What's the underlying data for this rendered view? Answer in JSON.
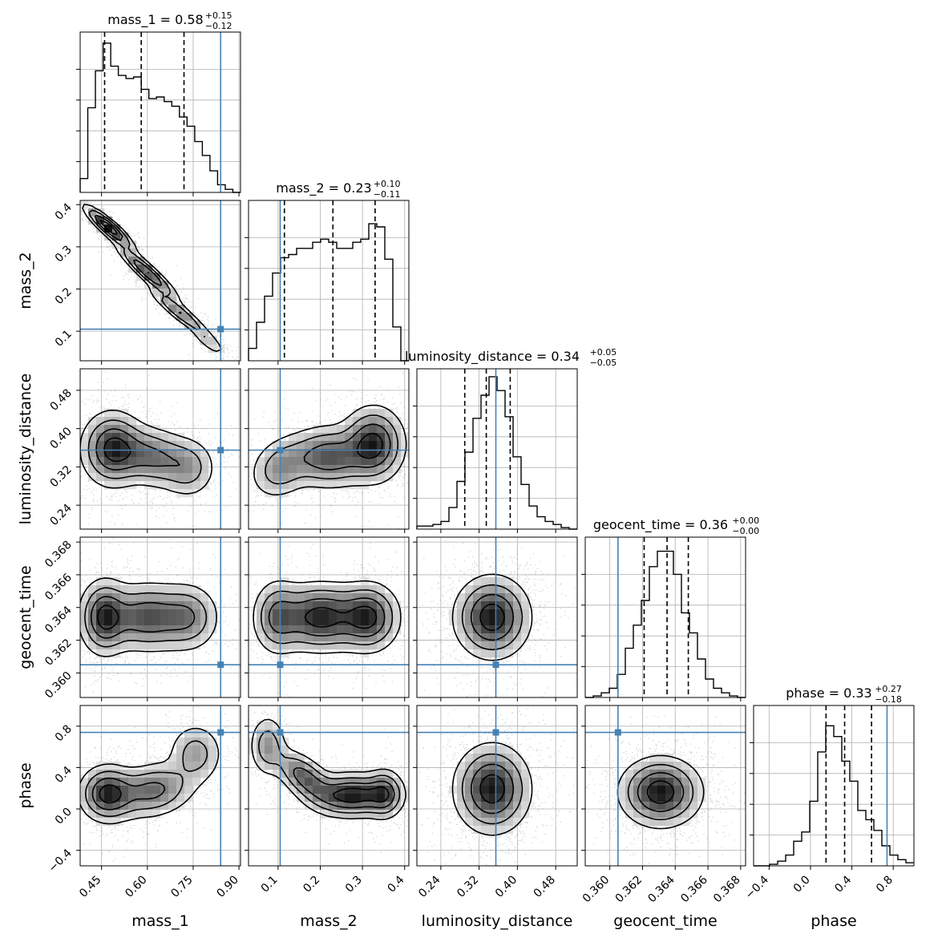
{
  "chart_data": {
    "type": "corner",
    "parameters": [
      "mass_1",
      "mass_2",
      "luminosity_distance",
      "geocent_time",
      "phase"
    ],
    "axis_labels": [
      "mass_1",
      "mass_2",
      "luminosity_distance",
      "geocent_time",
      "phase"
    ],
    "ranges": [
      [
        0.38,
        0.905
      ],
      [
        0.03,
        0.41
      ],
      [
        0.19,
        0.525
      ],
      [
        0.3585,
        0.3683
      ],
      [
        -0.55,
        1.0
      ]
    ],
    "ticks": [
      [
        "0.45",
        "0.60",
        "0.75",
        "0.90"
      ],
      [
        "0.1",
        "0.2",
        "0.3",
        "0.4"
      ],
      [
        "0.24",
        "0.32",
        "0.40",
        "0.48"
      ],
      [
        "0.360",
        "0.362",
        "0.364",
        "0.366",
        "0.368"
      ],
      [
        "−0.4",
        "0.0",
        "0.4",
        "0.8"
      ]
    ],
    "tick_values": [
      [
        0.45,
        0.6,
        0.75,
        0.9
      ],
      [
        0.1,
        0.2,
        0.3,
        0.4
      ],
      [
        0.24,
        0.32,
        0.4,
        0.48
      ],
      [
        0.36,
        0.362,
        0.364,
        0.366,
        0.368
      ],
      [
        -0.4,
        0.0,
        0.4,
        0.8
      ]
    ],
    "truths": [
      0.84,
      0.105,
      0.355,
      0.3605,
      0.74
    ],
    "quantiles": [
      [
        0.46,
        0.58,
        0.72
      ],
      [
        0.115,
        0.23,
        0.33
      ],
      [
        0.29,
        0.335,
        0.385
      ],
      [
        0.3621,
        0.3635,
        0.3648
      ],
      [
        0.15,
        0.33,
        0.59
      ]
    ],
    "titles": [
      {
        "label": "mass_1 = 0.58",
        "plus": "+0.15",
        "minus": "−0.12"
      },
      {
        "label": "mass_2 = 0.23",
        "plus": "+0.10",
        "minus": "−0.11"
      },
      {
        "label": "luminosity_distance = 0.34",
        "plus": "+0.05",
        "minus": "−0.05"
      },
      {
        "label": "geocent_time = 0.36",
        "plus": "+0.00",
        "minus": "−0.00"
      },
      {
        "label": "phase = 0.33",
        "plus": "+0.27",
        "minus": "−0.18"
      }
    ],
    "histograms": [
      [
        0.09,
        0.55,
        0.79,
        0.97,
        0.82,
        0.76,
        0.74,
        0.75,
        0.67,
        0.61,
        0.62,
        0.59,
        0.56,
        0.49,
        0.43,
        0.33,
        0.24,
        0.14,
        0.05,
        0.02,
        0.0
      ],
      [
        0.08,
        0.25,
        0.42,
        0.57,
        0.67,
        0.69,
        0.73,
        0.73,
        0.77,
        0.79,
        0.77,
        0.73,
        0.73,
        0.77,
        0.79,
        0.89,
        0.87,
        0.66,
        0.22,
        0.0
      ],
      [
        0.02,
        0.02,
        0.03,
        0.05,
        0.14,
        0.31,
        0.5,
        0.72,
        0.87,
        0.99,
        0.9,
        0.73,
        0.47,
        0.29,
        0.15,
        0.08,
        0.05,
        0.03,
        0.01,
        0.0
      ],
      [
        0.0,
        0.01,
        0.03,
        0.06,
        0.15,
        0.32,
        0.47,
        0.63,
        0.85,
        0.95,
        0.95,
        0.8,
        0.55,
        0.42,
        0.25,
        0.12,
        0.06,
        0.03,
        0.01,
        0.0
      ],
      [
        0.0,
        0.0,
        0.01,
        0.03,
        0.07,
        0.16,
        0.22,
        0.42,
        0.74,
        0.91,
        0.84,
        0.68,
        0.55,
        0.36,
        0.3,
        0.23,
        0.13,
        0.07,
        0.04,
        0.02
      ]
    ],
    "hist_ylim": [
      0,
      1.0
    ],
    "grid": true
  }
}
